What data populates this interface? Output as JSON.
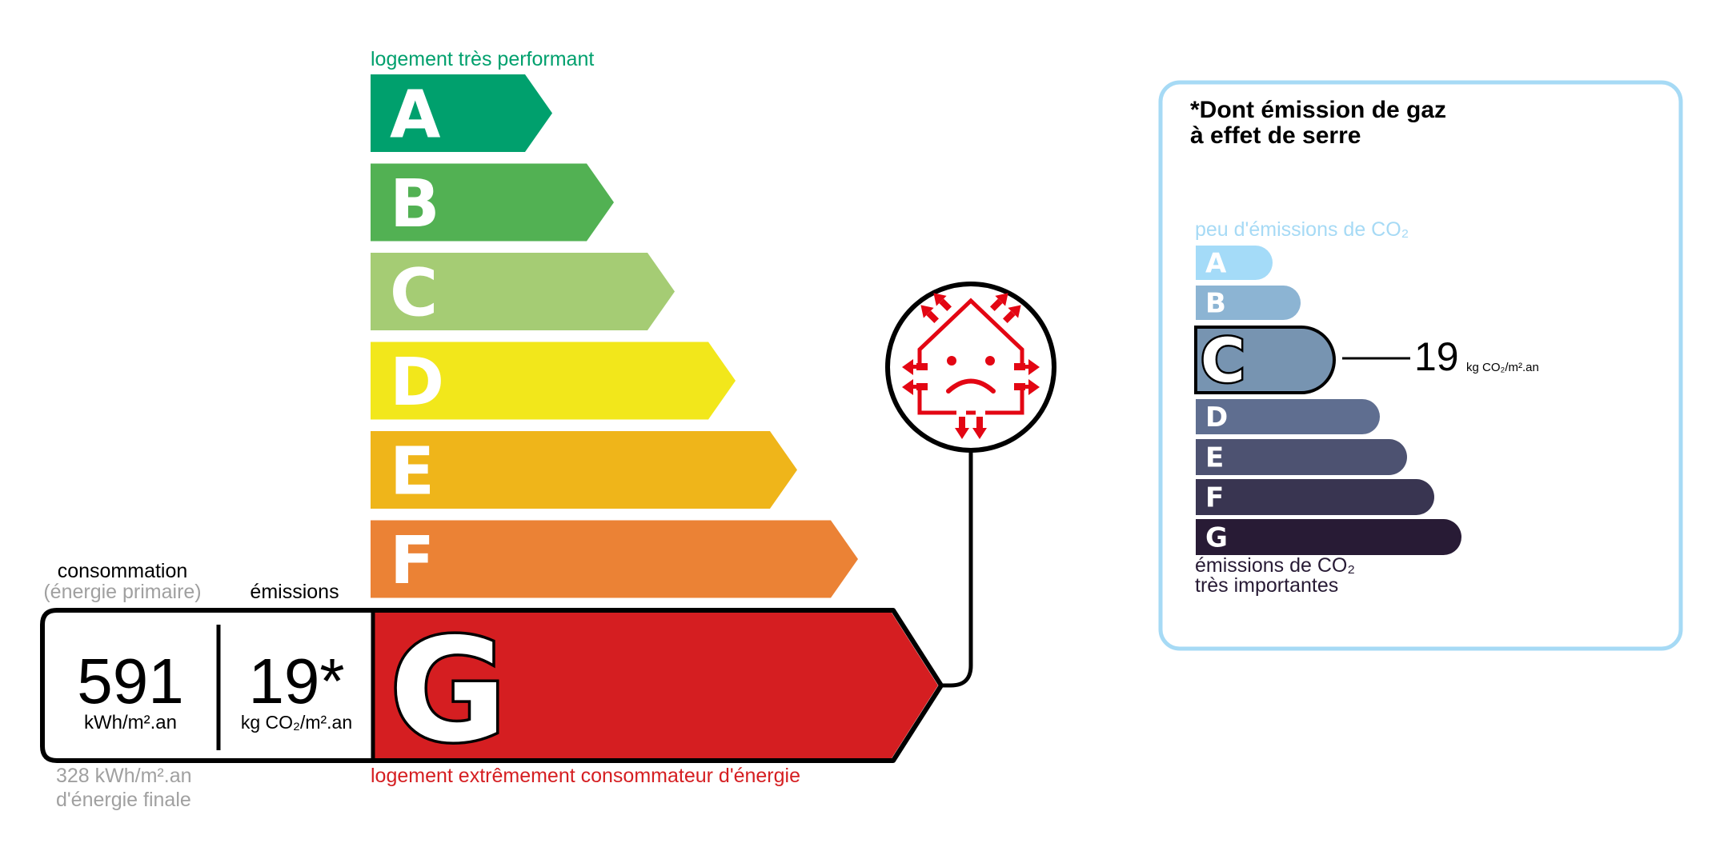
{
  "energy": {
    "top_label": "logement très performant",
    "bottom_label": "logement extrêmement consommateur d'énergie",
    "classes": [
      {
        "letter": "A",
        "color": "#00a06d"
      },
      {
        "letter": "B",
        "color": "#52b153"
      },
      {
        "letter": "C",
        "color": "#a5cc74"
      },
      {
        "letter": "D",
        "color": "#f2e71b"
      },
      {
        "letter": "E",
        "color": "#efb51a"
      },
      {
        "letter": "F",
        "color": "#eb8235"
      },
      {
        "letter": "G",
        "color": "#d51e21"
      }
    ],
    "selected_class": "G",
    "consumption_header": "consommation",
    "consumption_sub": "(énergie primaire)",
    "emissions_header": "émissions",
    "consumption_value": "591",
    "consumption_unit": "kWh/m².an",
    "emissions_value": "19*",
    "emissions_unit": "kg CO₂/m².an",
    "final_energy_line1": "328 kWh/m².an",
    "final_energy_line2": "d'énergie finale",
    "icon": "house-heat-loss-sad-icon",
    "icon_color": "#e30613"
  },
  "ges": {
    "title_line1": "*Dont émission de gaz",
    "title_line2": "à effet de serre",
    "top_label": "peu d'émissions de CO₂",
    "bottom_label_line1": "émissions de CO₂",
    "bottom_label_line2": "très importantes",
    "classes": [
      {
        "letter": "A",
        "color": "#a4dbf8"
      },
      {
        "letter": "B",
        "color": "#8cb4d3"
      },
      {
        "letter": "C",
        "color": "#7794b1"
      },
      {
        "letter": "D",
        "color": "#5f6e90"
      },
      {
        "letter": "E",
        "color": "#4d5271"
      },
      {
        "letter": "F",
        "color": "#393551"
      },
      {
        "letter": "G",
        "color": "#281b35"
      }
    ],
    "selected_class": "C",
    "value": "19",
    "unit": "kg CO₂/m².an",
    "border_color": "#a6daf5"
  }
}
